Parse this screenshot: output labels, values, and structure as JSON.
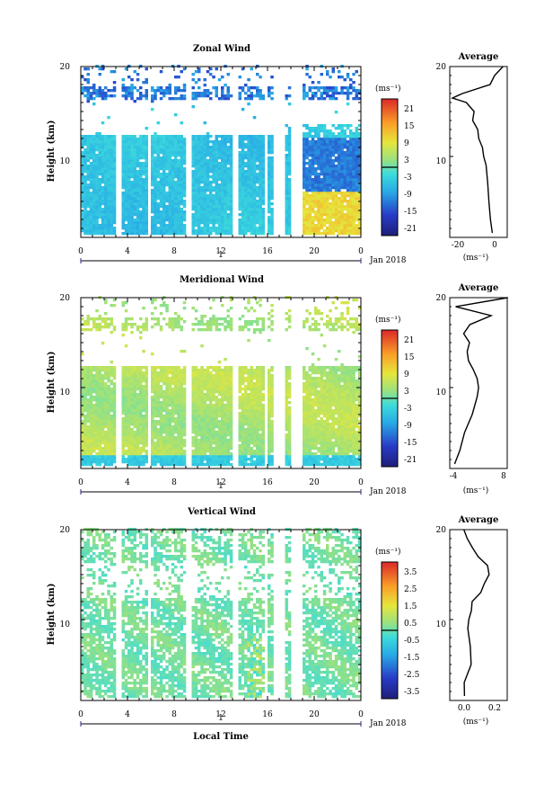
{
  "chart_data": [
    {
      "type": "heatmap",
      "title": "Zonal Wind",
      "xlabel": "",
      "ylabel": "Height (km)",
      "x_ticks": [
        "0",
        "4",
        "8",
        "12",
        "16",
        "20",
        "0"
      ],
      "y_ticks": [
        "10",
        "20"
      ],
      "xlim": [
        0,
        24
      ],
      "ylim": [
        1,
        20
      ],
      "date_label": "Jan 2018",
      "day_label": "1",
      "colorbar": {
        "unit": "(ms⁻¹)",
        "ticks": [
          "21",
          "15",
          "9",
          "3",
          "-3",
          "-9",
          "-15",
          "-21"
        ],
        "range": [
          -24,
          24
        ]
      },
      "profile": {
        "title": "Average",
        "x_ticks": [
          "-20",
          "0"
        ],
        "xlim": [
          -28,
          8
        ],
        "unit": "(ms⁻¹)",
        "y_ticks": [
          "10",
          "20"
        ],
        "heights": [
          1.5,
          3,
          5,
          7,
          9,
          10,
          11,
          12,
          13,
          14,
          15,
          16,
          16.5,
          17,
          18,
          19,
          20
        ],
        "values": [
          -1,
          -2,
          -3,
          -4,
          -5,
          -6,
          -8,
          -10,
          -11,
          -14,
          -13,
          -17,
          -26,
          -20,
          -3,
          0,
          5
        ]
      }
    },
    {
      "type": "heatmap",
      "title": "Meridional Wind",
      "xlabel": "",
      "ylabel": "Height (km)",
      "x_ticks": [
        "0",
        "4",
        "8",
        "12",
        "16",
        "20",
        "0"
      ],
      "y_ticks": [
        "10",
        "20"
      ],
      "xlim": [
        0,
        24
      ],
      "ylim": [
        1,
        20
      ],
      "date_label": "Jan 2018",
      "day_label": "1",
      "colorbar": {
        "unit": "(ms⁻¹)",
        "ticks": [
          "21",
          "15",
          "9",
          "3",
          "-3",
          "-9",
          "-15",
          "-21"
        ],
        "range": [
          -24,
          24
        ]
      },
      "profile": {
        "title": "Average",
        "x_ticks": [
          "-4",
          "8"
        ],
        "xlim": [
          -4,
          8
        ],
        "unit": "(ms⁻¹)",
        "y_ticks": [
          "10",
          "20"
        ],
        "heights": [
          1.5,
          3,
          5,
          7,
          9,
          10,
          11,
          12,
          13,
          14,
          15,
          16,
          17,
          18,
          19,
          20
        ],
        "values": [
          -2.8,
          -2,
          -1,
          0.5,
          1.5,
          2,
          1.5,
          1,
          0,
          -0.5,
          0,
          -1,
          0,
          4.5,
          -3,
          8
        ]
      }
    },
    {
      "type": "heatmap",
      "title": "Vertical Wind",
      "xlabel": "Local Time",
      "ylabel": "Height (km)",
      "x_ticks": [
        "0",
        "4",
        "8",
        "12",
        "16",
        "20",
        "0"
      ],
      "y_ticks": [
        "10",
        "20"
      ],
      "xlim": [
        0,
        24
      ],
      "ylim": [
        1,
        20
      ],
      "date_label": "Jan 2018",
      "day_label": "1",
      "colorbar": {
        "unit": "(ms⁻¹)",
        "ticks": [
          "3.5",
          "2.5",
          "1.5",
          "0.5",
          "-0.5",
          "-1.5",
          "-2.5",
          "-3.5"
        ],
        "range": [
          -4,
          4
        ]
      },
      "profile": {
        "title": "Average",
        "x_ticks": [
          "0.0",
          "0.2"
        ],
        "xlim": [
          -0.1,
          0.3
        ],
        "unit": "(ms⁻¹)",
        "y_ticks": [
          "10",
          "20"
        ],
        "heights": [
          1.5,
          3,
          5,
          7,
          9,
          10,
          11,
          12,
          13,
          14,
          15,
          16,
          17,
          18,
          19,
          20
        ],
        "values": [
          0.0,
          0.0,
          0.05,
          0.05,
          0.02,
          0.03,
          0.05,
          0.06,
          0.12,
          0.14,
          0.18,
          0.17,
          0.1,
          0.05,
          0.02,
          0.0
        ]
      }
    }
  ]
}
